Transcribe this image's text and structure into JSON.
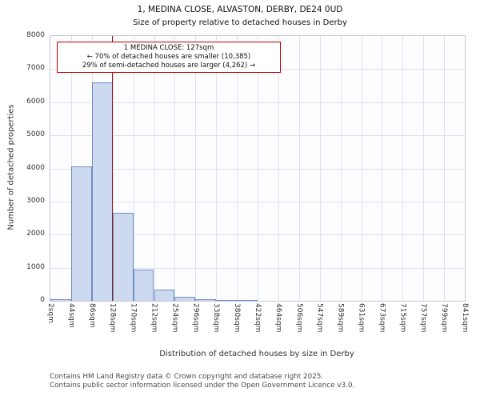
{
  "title": "1, MEDINA CLOSE, ALVASTON, DERBY, DE24 0UD",
  "subtitle": "Size of property relative to detached houses in Derby",
  "annotation": {
    "line1": "1 MEDINA CLOSE: 127sqm",
    "line2": "← 70% of detached houses are smaller (10,385)",
    "line3": "29% of semi-detached houses are larger (4,262) →"
  },
  "footer": {
    "line1": "Contains HM Land Registry data © Crown copyright and database right 2025.",
    "line2": "Contains public sector information licensed under the Open Government Licence v3.0."
  },
  "chart_data": {
    "type": "bar",
    "title": "1, MEDINA CLOSE, ALVASTON, DERBY, DE24 0UD — Size of property relative to detached houses in Derby",
    "xlabel": "Distribution of detached houses by size in Derby",
    "ylabel": "Number of detached properties",
    "ylim": [
      0,
      8000
    ],
    "ytick_step": 1000,
    "grid": true,
    "x_tick_labels": [
      "2sqm",
      "44sqm",
      "86sqm",
      "128sqm",
      "170sqm",
      "212sqm",
      "254sqm",
      "296sqm",
      "338sqm",
      "380sqm",
      "422sqm",
      "464sqm",
      "506sqm",
      "547sqm",
      "589sqm",
      "631sqm",
      "673sqm",
      "715sqm",
      "757sqm",
      "799sqm",
      "841sqm"
    ],
    "bin_edges_sqm": [
      2,
      44,
      86,
      128,
      170,
      212,
      254,
      296,
      338,
      380,
      422,
      464,
      506,
      547,
      589,
      631,
      673,
      715,
      757,
      799,
      841
    ],
    "values": [
      40,
      4050,
      6600,
      2650,
      950,
      330,
      110,
      50,
      30,
      20,
      0,
      0,
      0,
      0,
      0,
      0,
      0,
      0,
      0,
      0
    ],
    "marker": {
      "label": "1 MEDINA CLOSE",
      "value_sqm": 127,
      "x_fraction": 0.149,
      "color": "#8b1a1a"
    },
    "bar_fill": "#cdd9ef",
    "bar_border": "#6d8fc3",
    "grid_color": "#dbe2f0"
  }
}
